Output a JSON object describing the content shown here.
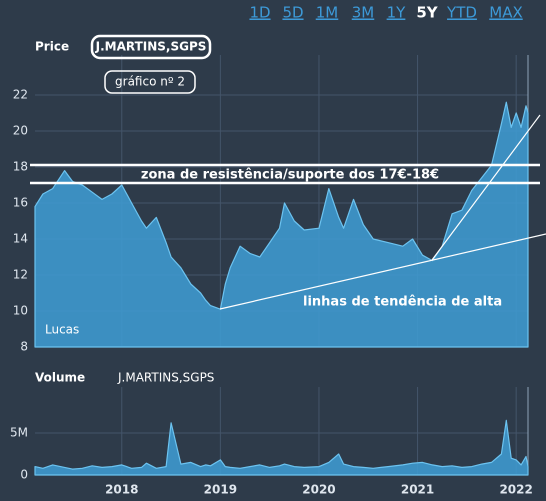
{
  "range_buttons": [
    "1D",
    "5D",
    "1M",
    "3M",
    "1Y",
    "5Y",
    "YTD",
    "MAX"
  ],
  "selected_range": "5Y",
  "chart_data": [
    {
      "type": "area",
      "title": "Price",
      "symbol": "J.MARTINS,SGPS",
      "annotations": [
        "gráfico nº 2",
        "zona de resistência/suporte dos 17€-18€",
        "linhas de tendência de alta",
        "Lucas"
      ],
      "color": "#3f9bd2",
      "x": [
        2017.12,
        2017.2,
        2017.3,
        2017.42,
        2017.5,
        2017.6,
        2017.7,
        2017.8,
        2017.9,
        2018.0,
        2018.1,
        2018.2,
        2018.25,
        2018.35,
        2018.45,
        2018.5,
        2018.6,
        2018.7,
        2018.8,
        2018.85,
        2018.9,
        2019.0,
        2019.05,
        2019.1,
        2019.2,
        2019.3,
        2019.4,
        2019.5,
        2019.6,
        2019.65,
        2019.75,
        2019.85,
        2020.0,
        2020.1,
        2020.2,
        2020.25,
        2020.35,
        2020.45,
        2020.55,
        2020.7,
        2020.85,
        2020.95,
        2021.05,
        2021.15,
        2021.25,
        2021.35,
        2021.45,
        2021.55,
        2021.65,
        2021.75,
        2021.85,
        2021.9,
        2021.95,
        2022.0,
        2022.05,
        2022.1,
        2022.12
      ],
      "values": [
        15.8,
        16.5,
        16.8,
        17.8,
        17.2,
        17.0,
        16.6,
        16.2,
        16.5,
        17.0,
        16.0,
        15.0,
        14.6,
        15.2,
        13.8,
        13.0,
        12.4,
        11.5,
        11.0,
        10.6,
        10.3,
        10.1,
        11.5,
        12.4,
        13.6,
        13.2,
        13.0,
        13.8,
        14.6,
        16.0,
        15.0,
        14.5,
        14.6,
        16.8,
        15.2,
        14.6,
        16.2,
        14.8,
        14.0,
        13.8,
        13.6,
        14.0,
        13.1,
        12.8,
        13.6,
        15.4,
        15.6,
        16.7,
        17.4,
        18.1,
        20.4,
        21.6,
        20.2,
        21.0,
        20.2,
        21.4,
        21.0
      ],
      "xlim": [
        2017.12,
        2022.12
      ],
      "ylim": [
        8,
        24
      ],
      "yticks": [
        8,
        10,
        12,
        14,
        16,
        18,
        20,
        22
      ],
      "grid": true
    },
    {
      "type": "area",
      "title": "Volume",
      "symbol": "J.MARTINS,SGPS",
      "color": "#3f9bd2",
      "x": [
        2017.12,
        2017.2,
        2017.3,
        2017.42,
        2017.5,
        2017.6,
        2017.7,
        2017.8,
        2017.9,
        2018.0,
        2018.1,
        2018.2,
        2018.25,
        2018.35,
        2018.45,
        2018.5,
        2018.6,
        2018.7,
        2018.8,
        2018.85,
        2018.9,
        2019.0,
        2019.05,
        2019.1,
        2019.2,
        2019.3,
        2019.4,
        2019.5,
        2019.6,
        2019.65,
        2019.75,
        2019.85,
        2020.0,
        2020.1,
        2020.2,
        2020.25,
        2020.35,
        2020.45,
        2020.55,
        2020.7,
        2020.85,
        2020.95,
        2021.05,
        2021.15,
        2021.25,
        2021.35,
        2021.45,
        2021.55,
        2021.65,
        2021.75,
        2021.85,
        2021.9,
        2021.95,
        2022.0,
        2022.05,
        2022.1,
        2022.12
      ],
      "values": [
        1.0,
        0.8,
        1.2,
        0.9,
        0.7,
        0.8,
        1.1,
        0.9,
        1.0,
        1.2,
        0.8,
        0.9,
        1.4,
        0.8,
        1.0,
        6.2,
        1.3,
        1.5,
        1.0,
        1.2,
        1.1,
        1.8,
        1.0,
        0.9,
        0.8,
        1.0,
        1.2,
        0.9,
        1.1,
        1.3,
        1.0,
        0.9,
        1.0,
        1.5,
        2.5,
        1.3,
        1.0,
        0.9,
        0.8,
        1.0,
        1.2,
        1.4,
        1.5,
        1.2,
        1.0,
        1.1,
        0.9,
        1.0,
        1.3,
        1.5,
        2.5,
        6.5,
        2.0,
        1.8,
        1.2,
        2.2,
        1.0
      ],
      "xlim": [
        2017.12,
        2022.12
      ],
      "xticks": [
        2018,
        2019,
        2020,
        2021,
        2022
      ],
      "ylim": [
        0,
        10
      ],
      "yticks": [
        0,
        {
          "value": 5,
          "label": "5M"
        }
      ],
      "grid": true
    }
  ]
}
